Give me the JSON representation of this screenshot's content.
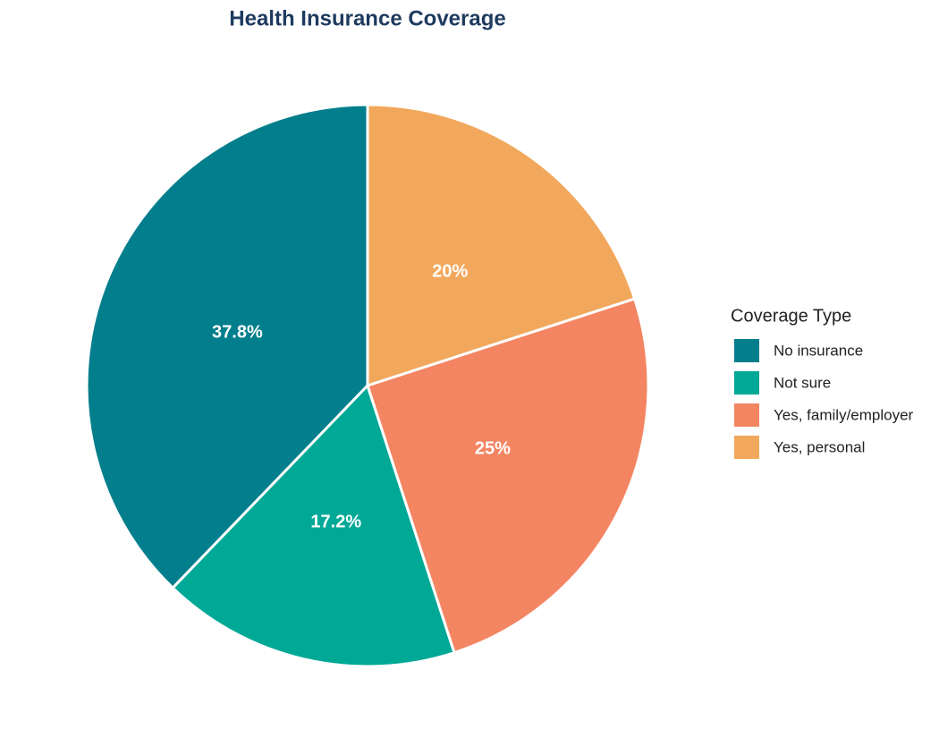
{
  "chart_data": {
    "type": "pie",
    "title": "Health Insurance Coverage",
    "categories": [
      "No insurance",
      "Not sure",
      "Yes, family/employer",
      "Yes, personal"
    ],
    "values": [
      37.8,
      17.2,
      25,
      20
    ],
    "value_labels": [
      "37.8%",
      "17.2%",
      "25%",
      "20%"
    ],
    "colors": [
      "#037e8c",
      "#00a896",
      "#f48562",
      "#f2a85c"
    ],
    "legend_title": "Coverage Type",
    "legend": "right"
  }
}
